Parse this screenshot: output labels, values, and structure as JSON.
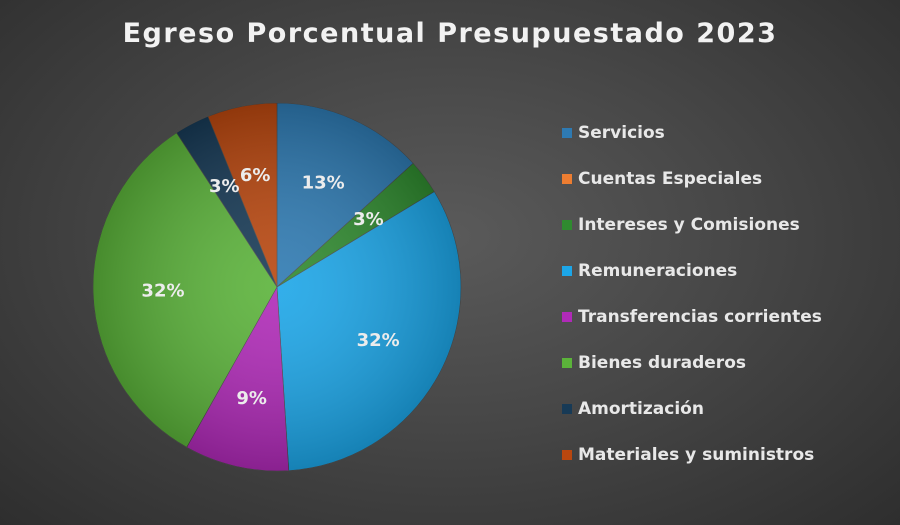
{
  "chart_data": {
    "type": "pie",
    "title": "Egreso Porcentual Presupuestado 2023",
    "legend_position": "right",
    "slices": [
      {
        "label": "Servicios",
        "value": 13,
        "display": "13%",
        "color": "#2e7ab2"
      },
      {
        "label": "Cuentas Especiales",
        "value": 0,
        "display": "",
        "color": "#ed7d31"
      },
      {
        "label": "Intereses y Comisiones",
        "value": 3,
        "display": "3%",
        "color": "#2f8a2f"
      },
      {
        "label": "Remuneraciones",
        "value": 32,
        "display": "32%",
        "color": "#1ca6e8"
      },
      {
        "label": "Transferencias corrientes",
        "value": 9,
        "display": "9%",
        "color": "#b02ab8"
      },
      {
        "label": "Bienes duraderos",
        "value": 32,
        "display": "32%",
        "color": "#5bb33a"
      },
      {
        "label": "Amortización",
        "value": 3,
        "display": "3%",
        "color": "#173a56"
      },
      {
        "label": "Materiales y suministros",
        "value": 6,
        "display": "6%",
        "color": "#b9470f"
      }
    ]
  }
}
